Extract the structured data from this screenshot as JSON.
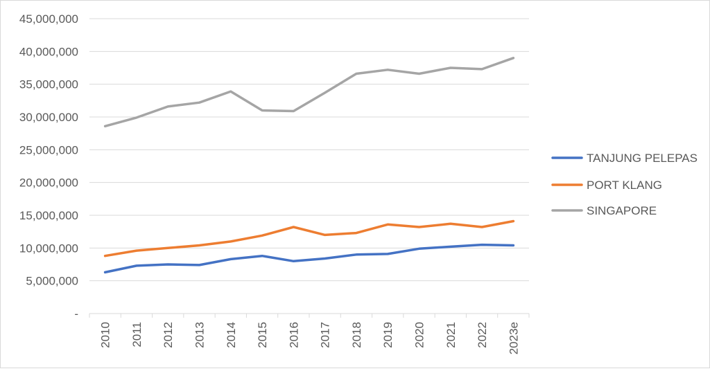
{
  "chart_data": {
    "type": "line",
    "title": "",
    "xlabel": "",
    "ylabel": "",
    "categories": [
      "2010",
      "2011",
      "2012",
      "2013",
      "2014",
      "2015",
      "2016",
      "2017",
      "2018",
      "2019",
      "2020",
      "2021",
      "2022",
      "2023e"
    ],
    "ylim": [
      0,
      45000000
    ],
    "yticks": [
      0,
      5000000,
      10000000,
      15000000,
      20000000,
      25000000,
      30000000,
      35000000,
      40000000,
      45000000
    ],
    "ytick_labels": [
      "-",
      "5,000,000",
      "10,000,000",
      "15,000,000",
      "20,000,000",
      "25,000,000",
      "30,000,000",
      "35,000,000",
      "40,000,000",
      "45,000,000"
    ],
    "grid": true,
    "legend_position": "right",
    "series": [
      {
        "name": "TANJUNG PELEPAS",
        "color": "#4472C4",
        "values": [
          6300000,
          7300000,
          7500000,
          7400000,
          8300000,
          8800000,
          8000000,
          8400000,
          9000000,
          9100000,
          9900000,
          10200000,
          10500000,
          10400000
        ]
      },
      {
        "name": "PORT KLANG",
        "color": "#ED7D31",
        "values": [
          8800000,
          9600000,
          10000000,
          10400000,
          11000000,
          11900000,
          13200000,
          12000000,
          12300000,
          13600000,
          13200000,
          13700000,
          13200000,
          14100000
        ]
      },
      {
        "name": "SINGAPORE",
        "color": "#A5A5A5",
        "values": [
          28600000,
          29900000,
          31600000,
          32200000,
          33900000,
          31000000,
          30900000,
          33700000,
          36600000,
          37200000,
          36600000,
          37500000,
          37300000,
          39000000
        ]
      }
    ]
  }
}
